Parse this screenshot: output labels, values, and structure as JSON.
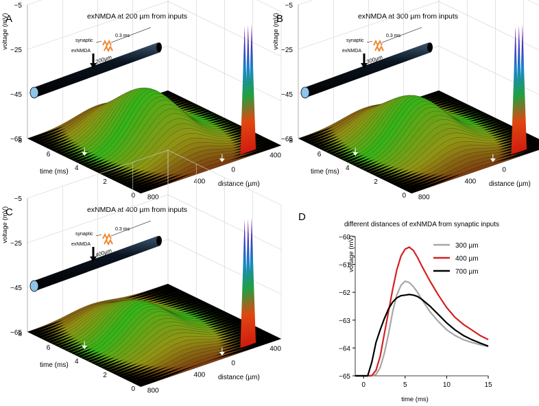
{
  "panels": [
    {
      "id": "A",
      "letter": "A",
      "title": "exNMDA at 200 µm from inputs",
      "zlabel": "voltage (mV)",
      "z_ticks": [
        "−5",
        "−25",
        "−45",
        "−65"
      ],
      "time_label": "time (ms)",
      "time_ticks": [
        "8",
        "6",
        "4",
        "2",
        "0"
      ],
      "distance_label": "distance (µm)",
      "distance_ticks": [
        "800",
        "400",
        "0",
        "400"
      ],
      "inset": {
        "synaptic": "synaptic",
        "duration": "0.3 ms",
        "exnmda": "exNMDA",
        "dist": "200µm"
      }
    },
    {
      "id": "B",
      "letter": "B",
      "title": "exNMDA at 300 µm from inputs",
      "zlabel": "voltage (mV)",
      "z_ticks": [
        "−5",
        "−25",
        "−45",
        "−65"
      ],
      "time_label": "time (ms)",
      "time_ticks": [
        "8",
        "6",
        "4",
        "2",
        "0"
      ],
      "distance_label": "distance (µm)",
      "distance_ticks": [
        "800",
        "400",
        "0",
        "400"
      ],
      "inset": {
        "synaptic": "synaptic",
        "duration": "0.3 ms",
        "exnmda": "exNMDA",
        "dist": "300µm"
      }
    },
    {
      "id": "C",
      "letter": "C",
      "title": "exNMDA at 400 µm from inputs",
      "zlabel": "voltage (mV)",
      "z_ticks": [
        "−5",
        "−25",
        "−45",
        "−65"
      ],
      "time_label": "time (ms)",
      "time_ticks": [
        "8",
        "6",
        "4",
        "2",
        "0"
      ],
      "distance_label": "distance (µm)",
      "distance_ticks": [
        "800",
        "400",
        "0",
        "400"
      ],
      "inset": {
        "synaptic": "synaptic",
        "duration": "0.3 ms",
        "exnmda": "exNMDA",
        "dist": "400µm"
      }
    }
  ],
  "chart_data": [
    {
      "type": "surface",
      "panel": "A",
      "title": "exNMDA at 200 µm from inputs",
      "xlabel": "distance (µm)",
      "ylabel": "time (ms)",
      "zlabel": "voltage (mV)",
      "zlim": [
        -65,
        -5
      ],
      "exnmda_distance_um": 200,
      "synaptic_peak_mV": -8,
      "broad_peak_mV": -43
    },
    {
      "type": "surface",
      "panel": "B",
      "title": "exNMDA at 300 µm from inputs",
      "xlabel": "distance (µm)",
      "ylabel": "time (ms)",
      "zlabel": "voltage (mV)",
      "zlim": [
        -65,
        -5
      ],
      "exnmda_distance_um": 300,
      "synaptic_peak_mV": -8,
      "broad_peak_mV": -46
    },
    {
      "type": "surface",
      "panel": "C",
      "title": "exNMDA at 400 µm from inputs",
      "xlabel": "distance (µm)",
      "ylabel": "time (ms)",
      "zlabel": "voltage (mV)",
      "zlim": [
        -65,
        -5
      ],
      "exnmda_distance_um": 400,
      "synaptic_peak_mV": -8,
      "broad_peak_mV": -51
    },
    {
      "type": "line",
      "panel": "D",
      "letter": "D",
      "title": "different distances of exNMDA from synaptic inputs",
      "xlabel": "time (ms)",
      "ylabel": "voltage (mV)",
      "xlim": [
        -1,
        15
      ],
      "ylim": [
        -65,
        -60
      ],
      "x_ticks": [
        "0",
        "5",
        "10",
        "15"
      ],
      "y_ticks": [
        "−60",
        "−61",
        "−62",
        "−63",
        "−64",
        "−65"
      ],
      "x": [
        -1,
        0,
        0.5,
        1,
        1.5,
        2,
        2.5,
        3,
        3.5,
        4,
        4.5,
        5,
        5.5,
        6,
        6.5,
        7,
        8,
        9,
        10,
        11,
        12,
        13,
        14,
        15
      ],
      "series": [
        {
          "name": "300 µm",
          "color": "#a6a6a6",
          "values": [
            -65,
            -65,
            -65,
            -65,
            -64.95,
            -64.7,
            -64.2,
            -63.5,
            -62.7,
            -62.1,
            -61.75,
            -61.6,
            -61.65,
            -61.8,
            -62.0,
            -62.25,
            -62.7,
            -63.05,
            -63.35,
            -63.55,
            -63.7,
            -63.8,
            -63.88,
            -63.95
          ]
        },
        {
          "name": "400 µm",
          "color": "#d42020",
          "values": [
            -65,
            -65,
            -65,
            -64.99,
            -64.8,
            -64.3,
            -63.5,
            -62.7,
            -61.9,
            -61.2,
            -60.7,
            -60.45,
            -60.38,
            -60.5,
            -60.75,
            -61.05,
            -61.6,
            -62.1,
            -62.55,
            -62.9,
            -63.15,
            -63.35,
            -63.55,
            -63.7
          ]
        },
        {
          "name": "700 µm",
          "color": "#000000",
          "values": [
            -65,
            -65,
            -65,
            -64.5,
            -63.8,
            -63.35,
            -62.95,
            -62.6,
            -62.35,
            -62.2,
            -62.12,
            -62.1,
            -62.08,
            -62.1,
            -62.15,
            -62.25,
            -62.5,
            -62.8,
            -63.1,
            -63.35,
            -63.55,
            -63.7,
            -63.82,
            -63.93
          ]
        }
      ],
      "legend_position": "top-right"
    }
  ]
}
